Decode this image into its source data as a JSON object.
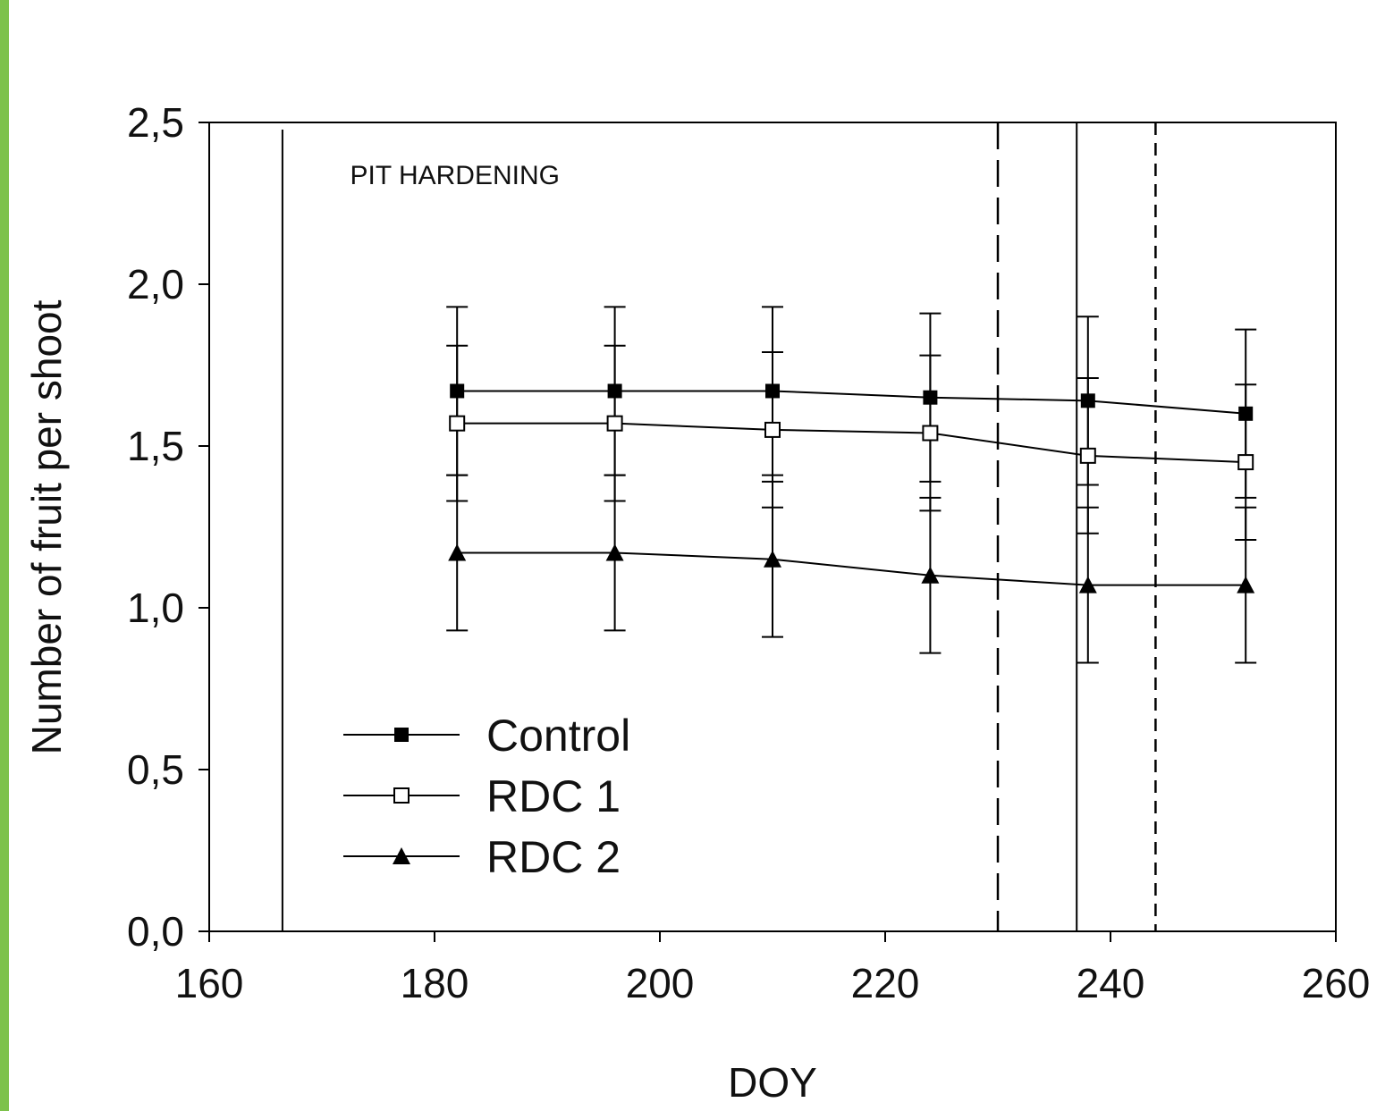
{
  "colors": {
    "frame_accent": "#7dc24b",
    "ink": "#000000",
    "background": "#ffffff"
  },
  "chart_data": {
    "type": "line",
    "title": "",
    "xlabel": "DOY",
    "ylabel": "Number of fruit per shoot",
    "xlim": [
      160,
      260
    ],
    "ylim": [
      0,
      2.5
    ],
    "x_ticks": [
      160,
      180,
      200,
      220,
      240,
      260
    ],
    "x_tick_labels": [
      "160",
      "180",
      "200",
      "220",
      "240",
      "260"
    ],
    "y_ticks": [
      0,
      0.5,
      1.0,
      1.5,
      2.0,
      2.5
    ],
    "y_tick_labels": [
      "0,0",
      "0,5",
      "1,0",
      "1,5",
      "2,0",
      "2,5"
    ],
    "grid": false,
    "legend_position": "bottom-left",
    "x": [
      182,
      196,
      210,
      224,
      238,
      252
    ],
    "series": [
      {
        "name": "Control",
        "marker": "filled-square",
        "values": [
          1.67,
          1.67,
          1.67,
          1.65,
          1.64,
          1.6
        ],
        "error": [
          0.26,
          0.26,
          0.26,
          0.26,
          0.26,
          0.26
        ]
      },
      {
        "name": "RDC 1",
        "marker": "open-square",
        "values": [
          1.57,
          1.57,
          1.55,
          1.54,
          1.47,
          1.45
        ],
        "error": [
          0.24,
          0.24,
          0.24,
          0.24,
          0.24,
          0.24
        ]
      },
      {
        "name": "RDC 2",
        "marker": "filled-triangle",
        "values": [
          1.17,
          1.17,
          1.15,
          1.1,
          1.07,
          1.07
        ],
        "error": [
          0.24,
          0.24,
          0.24,
          0.24,
          0.24,
          0.24
        ]
      }
    ],
    "reference_lines": [
      {
        "x": 166.5,
        "style": "solid"
      },
      {
        "x": 230,
        "style": "long-dash"
      },
      {
        "x": 237,
        "style": "solid"
      },
      {
        "x": 244,
        "style": "short-dash"
      }
    ],
    "annotations": [
      {
        "text": "PIT HARDENING",
        "x": 172.5,
        "y": 2.34
      }
    ]
  }
}
